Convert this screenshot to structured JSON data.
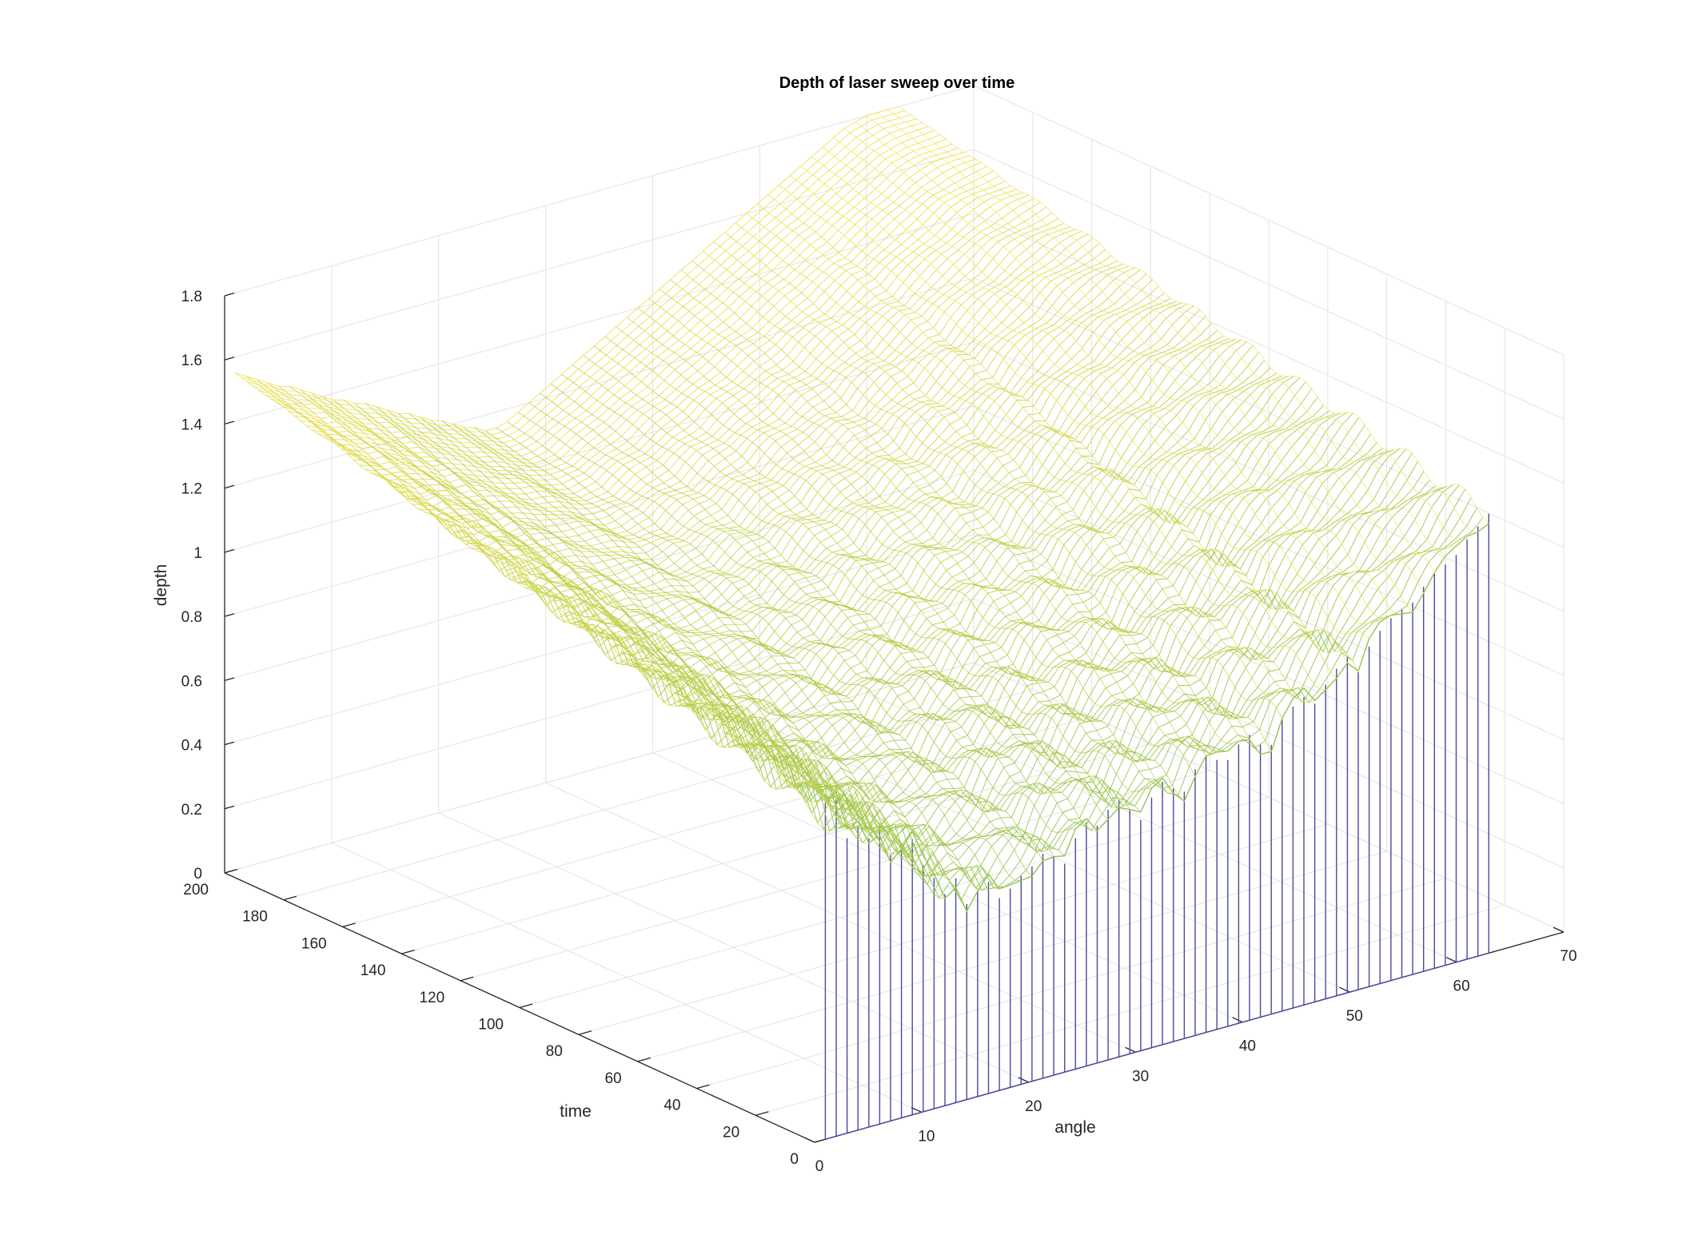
{
  "chart_data": {
    "type": "mesh3d",
    "title": "Depth of laser sweep over time",
    "xlabel": "angle",
    "ylabel": "time",
    "zlabel": "depth",
    "xlim": [
      0,
      70
    ],
    "ylim": [
      0,
      200
    ],
    "zlim": [
      0,
      1.8
    ],
    "x_ticks": [
      "0",
      "10",
      "20",
      "30",
      "40",
      "50",
      "60",
      "70"
    ],
    "y_ticks": [
      "0",
      "20",
      "40",
      "60",
      "80",
      "100",
      "120",
      "140",
      "160",
      "180",
      "200"
    ],
    "z_ticks": [
      "0",
      "0.2",
      "0.4",
      "0.6",
      "0.8",
      "1",
      "1.2",
      "1.4",
      "1.6",
      "1.8"
    ],
    "grid": true,
    "colormap": [
      "#4a4aa0",
      "#3a8fa8",
      "#5cb56a",
      "#a8c94a",
      "#f0e04a",
      "#ffe98a"
    ],
    "angle_count": 62,
    "time_range": [
      0,
      200
    ],
    "front_depth_profile_time0": [
      1.05,
      1.05,
      0.92,
      0.95,
      0.9,
      0.93,
      0.83,
      0.84,
      0.86,
      0.77,
      0.72,
      0.66,
      0.7,
      0.61,
      0.64,
      0.66,
      0.6,
      0.62,
      0.65,
      0.67,
      0.7,
      0.68,
      0.65,
      0.72,
      0.76,
      0.74,
      0.78,
      0.8,
      0.76,
      0.72,
      0.78,
      0.82,
      0.79,
      0.77,
      0.83,
      0.86,
      0.84,
      0.83,
      0.87,
      0.89,
      0.85,
      0.84,
      0.91,
      0.94,
      0.96,
      0.93,
      0.98,
      1.02,
      1.05,
      0.99,
      1.06,
      1.1,
      1.13,
      1.15,
      1.16,
      1.2,
      1.23,
      1.25,
      1.27,
      1.31,
      1.34,
      1.37
    ],
    "back_depth_profile_time200": [
      1.55,
      1.53,
      1.51,
      1.49,
      1.47,
      1.46,
      1.44,
      1.42,
      1.4,
      1.38,
      1.37,
      1.35,
      1.34,
      1.32,
      1.3,
      1.28,
      1.27,
      1.25,
      1.23,
      1.22,
      1.2,
      1.18,
      1.17,
      1.15,
      1.15,
      1.16,
      1.18,
      1.2,
      1.22,
      1.24,
      1.26,
      1.28,
      1.3,
      1.32,
      1.34,
      1.36,
      1.38,
      1.4,
      1.42,
      1.44,
      1.46,
      1.48,
      1.5,
      1.52,
      1.54,
      1.56,
      1.58,
      1.6,
      1.62,
      1.64,
      1.66,
      1.68,
      1.7,
      1.72,
      1.74,
      1.76,
      1.78,
      1.79,
      1.8,
      1.8,
      1.8,
      1.8
    ]
  }
}
